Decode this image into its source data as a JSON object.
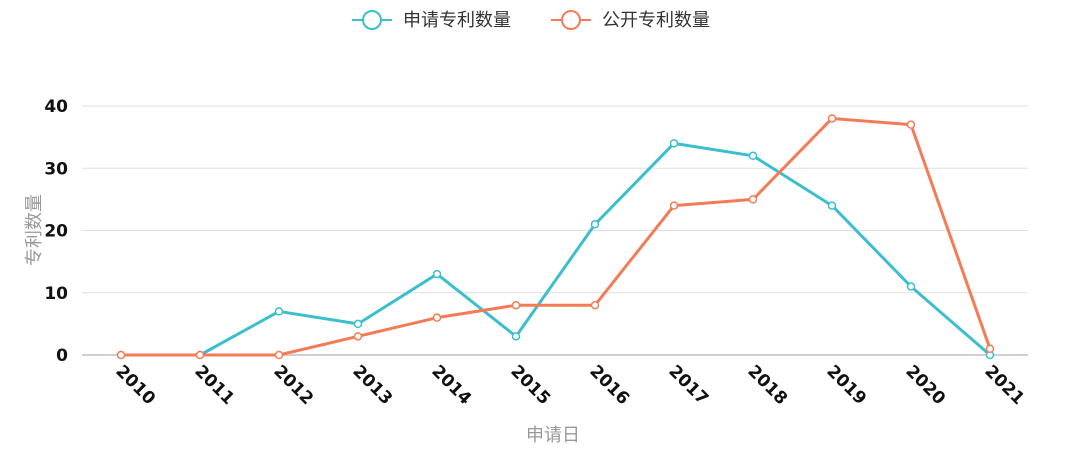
{
  "chart_data": {
    "type": "line",
    "title": "",
    "xlabel": "申请日",
    "ylabel": "专利数量",
    "categories": [
      "2010",
      "2011",
      "2012",
      "2013",
      "2014",
      "2015",
      "2016",
      "2017",
      "2018",
      "2019",
      "2020",
      "2021"
    ],
    "ylim": [
      0,
      40
    ],
    "yticks": [
      0,
      10,
      20,
      30,
      40
    ],
    "grid": true,
    "legend_position": "top-center",
    "series": [
      {
        "name": "申请专利数量",
        "color": "#3bbfcf",
        "values": [
          0,
          0,
          7,
          5,
          13,
          3,
          21,
          34,
          32,
          24,
          11,
          0
        ]
      },
      {
        "name": "公开专利数量",
        "color": "#f47b56",
        "values": [
          0,
          0,
          0,
          3,
          6,
          8,
          8,
          24,
          25,
          38,
          37,
          1
        ]
      }
    ]
  }
}
